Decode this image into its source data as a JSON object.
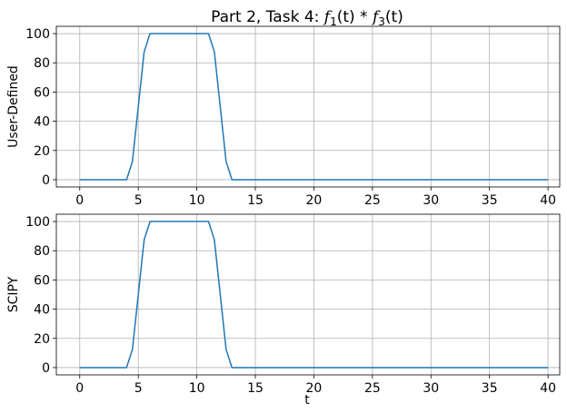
{
  "chart_data": {
    "type": "line",
    "title": {
      "prefix": "Part 2, Task 4: ",
      "f_left": "f",
      "sub_left": "1",
      "arg_left": "(t)",
      "op": " * ",
      "f_right": "f",
      "sub_right": "3",
      "arg_right": "(t)"
    },
    "color": "#1f77b4",
    "grid": true,
    "xlim": [
      -2,
      41
    ],
    "xticks": [
      0,
      5,
      10,
      15,
      20,
      25,
      30,
      35,
      40
    ],
    "panels": [
      {
        "ylabel": "User-Defined",
        "xlabel": "",
        "ylim": [
          -5,
          105
        ],
        "yticks": [
          0,
          20,
          40,
          60,
          80,
          100
        ],
        "x": [
          0,
          4.0,
          4.5,
          5.0,
          5.5,
          6.0,
          11.0,
          11.5,
          12.0,
          12.5,
          13.0,
          40
        ],
        "y": [
          0,
          0,
          12.5,
          50,
          87.5,
          100,
          100,
          87.5,
          50,
          12.5,
          0,
          0
        ]
      },
      {
        "ylabel": "SCIPY",
        "xlabel": "t",
        "ylim": [
          -5,
          105
        ],
        "yticks": [
          0,
          20,
          40,
          60,
          80,
          100
        ],
        "x": [
          0,
          4.0,
          4.5,
          5.0,
          5.5,
          6.0,
          11.0,
          11.5,
          12.0,
          12.5,
          13.0,
          40
        ],
        "y": [
          0,
          0,
          12.5,
          50,
          87.5,
          100,
          100,
          87.5,
          50,
          12.5,
          0,
          0
        ]
      }
    ]
  }
}
